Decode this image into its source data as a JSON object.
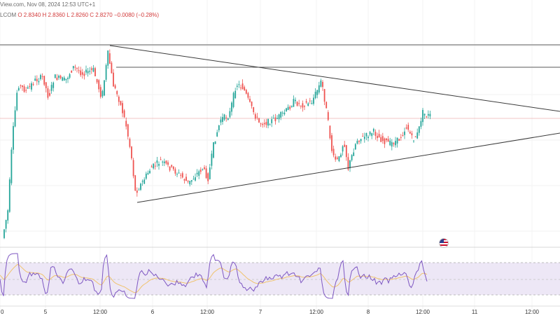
{
  "header": {
    "source_date": "View.com, Nov 08, 2024 12:53 UTC+1",
    "symbol": "LCOM",
    "ohlc": "O 2.8340  H 2.8360  L 2.8260  C 2.8270  −0.0080 (−0.28%)"
  },
  "colors": {
    "up": "#26a69a",
    "down": "#ef5350",
    "trendline": "#3a3a3a",
    "rsi_line": "#7e57c2",
    "rsi_ma": "#f0c36d",
    "rsi_band": "#ede7f6",
    "background": "#ffffff"
  },
  "icons": [
    "us-flag-icon"
  ],
  "chart_data": {
    "type": "candlestick",
    "timeframe": "15m",
    "x_ticks": [
      "0",
      "5",
      "12:00",
      "6",
      "12:00",
      "7",
      "12:00",
      "8",
      "12:00",
      "11",
      "12:00"
    ],
    "price_range": [
      2.5,
      3.1
    ],
    "candles": [
      [
        0.7,
        0.52,
        0.5
      ],
      [
        0.52,
        0.46,
        0.5
      ],
      [
        0.46,
        0.37,
        0.5
      ],
      [
        0.37,
        0.3,
        0.5
      ],
      [
        0.3,
        0.22,
        0.3
      ],
      [
        0.22,
        0.12,
        0.3
      ],
      [
        0.12,
        0.07,
        0.3
      ],
      [
        0.07,
        0.05,
        0.3
      ],
      [
        0.05,
        0.06,
        0.4
      ],
      [
        0.06,
        0.17,
        0.3
      ],
      [
        0.17,
        0.12,
        0.2
      ],
      [
        0.12,
        0.16,
        0.3
      ],
      [
        0.16,
        0.19,
        0.3
      ],
      [
        0.19,
        0.17,
        0.3
      ],
      [
        0.17,
        0.28,
        0.3
      ],
      [
        0.28,
        0.23,
        0.2
      ],
      [
        0.23,
        0.19,
        0.2
      ],
      [
        0.19,
        0.16,
        0.3
      ],
      [
        0.16,
        0.13,
        0.3
      ],
      [
        0.13,
        0.11,
        0.2
      ],
      [
        0.11,
        0.1,
        0.2
      ],
      [
        0.1,
        0.12,
        0.2
      ],
      [
        0.12,
        0.15,
        0.2
      ],
      [
        0.15,
        0.13,
        0.2
      ],
      [
        0.13,
        0.09,
        0.2
      ],
      [
        0.09,
        0.06,
        0.2
      ],
      [
        0.06,
        0.07,
        0.2
      ],
      [
        0.07,
        0.1,
        0.2
      ],
      [
        0.1,
        0.08,
        0.3
      ],
      [
        0.08,
        0.1,
        0.2
      ],
      [
        0.1,
        0.12,
        0.3
      ],
      [
        0.12,
        0.18,
        0.6
      ],
      [
        0.18,
        0.23,
        0.8
      ],
      [
        0.23,
        0.16,
        0.2
      ],
      [
        0.16,
        0.04,
        0.2
      ],
      [
        0.04,
        0.0,
        0.2
      ],
      [
        0.0,
        0.07,
        0.2
      ],
      [
        0.07,
        0.19,
        0.5
      ],
      [
        0.19,
        0.29,
        0.7
      ],
      [
        0.29,
        0.3,
        0.3
      ],
      [
        0.3,
        0.43,
        0.6
      ],
      [
        0.43,
        0.46,
        0.4
      ],
      [
        0.46,
        0.55,
        0.6
      ],
      [
        0.55,
        0.58,
        0.4
      ],
      [
        0.58,
        0.66,
        0.5
      ],
      [
        0.66,
        0.69,
        0.4
      ],
      [
        0.69,
        0.74,
        0.4
      ],
      [
        0.74,
        0.77,
        0.4
      ],
      [
        0.77,
        0.85,
        0.5
      ],
      [
        0.85,
        0.92,
        0.4
      ],
      [
        0.92,
        0.97,
        0.3
      ],
      [
        0.97,
        1.0,
        0.4
      ],
      [
        1.0,
        1.0,
        0.0
      ]
    ],
    "trend_lines": [
      {
        "from": [
          0.2,
          0.37
        ],
        "to": [
          0.33,
          0.79
        ]
      },
      {
        "from": [
          0.2,
          0.86
        ],
        "to": [
          1.0,
          0.34
        ]
      }
    ],
    "rsi_band": [
      30,
      70
    ]
  }
}
